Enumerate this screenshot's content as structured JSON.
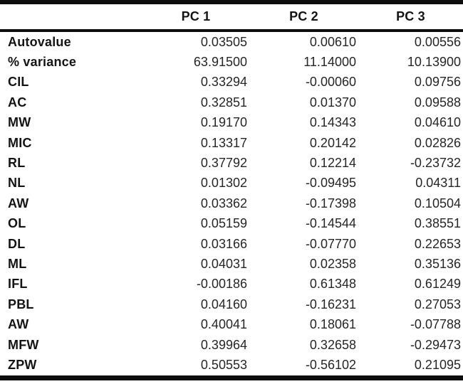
{
  "chart_data": {
    "type": "table",
    "columns": [
      "",
      "PC 1",
      "PC 2",
      "PC 3"
    ],
    "rows": [
      {
        "label": "Autovalue",
        "values": [
          "0.03505",
          "0.00610",
          "0.00556"
        ]
      },
      {
        "label": "% variance",
        "values": [
          "63.91500",
          "11.14000",
          "10.13900"
        ]
      },
      {
        "label": "CIL",
        "values": [
          "0.33294",
          "-0.00060",
          "0.09756"
        ]
      },
      {
        "label": "AC",
        "values": [
          "0.32851",
          "0.01370",
          "0.09588"
        ]
      },
      {
        "label": "MW",
        "values": [
          "0.19170",
          "0.14343",
          "0.04610"
        ]
      },
      {
        "label": "MIC",
        "values": [
          "0.13317",
          "0.20142",
          "0.02826"
        ]
      },
      {
        "label": "RL",
        "values": [
          "0.37792",
          "0.12214",
          "-0.23732"
        ]
      },
      {
        "label": "NL",
        "values": [
          "0.01302",
          "-0.09495",
          "0.04311"
        ]
      },
      {
        "label": "AW",
        "values": [
          "0.03362",
          "-0.17398",
          "0.10504"
        ]
      },
      {
        "label": "OL",
        "values": [
          "0.05159",
          "-0.14544",
          "0.38551"
        ]
      },
      {
        "label": "DL",
        "values": [
          "0.03166",
          "-0.07770",
          "0.22653"
        ]
      },
      {
        "label": "ML",
        "values": [
          "0.04031",
          "0.02358",
          "0.35136"
        ]
      },
      {
        "label": "IFL",
        "values": [
          "-0.00186",
          "0.61348",
          "0.61249"
        ]
      },
      {
        "label": "PBL",
        "values": [
          "0.04160",
          "-0.16231",
          "0.27053"
        ]
      },
      {
        "label": "AW",
        "values": [
          "0.40041",
          "0.18061",
          "-0.07788"
        ]
      },
      {
        "label": "MFW",
        "values": [
          "0.39964",
          "0.32658",
          "-0.29473"
        ]
      },
      {
        "label": "ZPW",
        "values": [
          "0.50553",
          "-0.56102",
          "0.21095"
        ]
      }
    ]
  }
}
